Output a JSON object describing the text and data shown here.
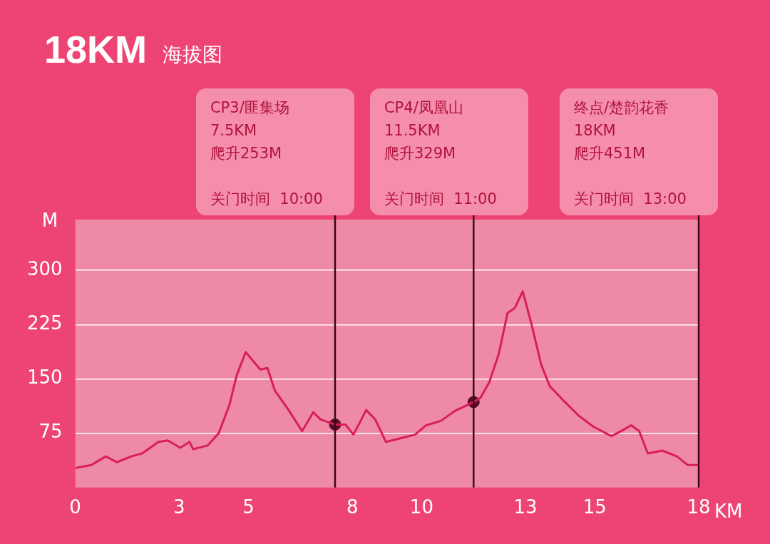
{
  "chart_data": {
    "type": "line",
    "title": "18KM",
    "subtitle": "海拔图",
    "xlabel": "KM",
    "ylabel": "M",
    "xlim": [
      0,
      18
    ],
    "xticks": [
      0,
      3,
      5,
      8,
      10,
      13,
      15,
      18
    ],
    "ylim": [
      0,
      370
    ],
    "yticks": [
      75,
      150,
      225,
      300
    ],
    "grid": "y",
    "legend": false,
    "line_style": "solid",
    "series": [
      {
        "type": "line",
        "marker": "none",
        "color": "#d81e5b",
        "x": [
          0,
          0.46,
          0.88,
          1.2,
          1.62,
          1.93,
          2.4,
          2.67,
          3.03,
          3.3,
          3.4,
          3.82,
          4.14,
          4.45,
          4.66,
          4.92,
          5.13,
          5.34,
          5.55,
          5.76,
          6.13,
          6.55,
          6.87,
          7.08,
          7.5,
          7.8,
          8.03,
          8.4,
          8.66,
          8.97,
          9.39,
          9.81,
          10.13,
          10.55,
          10.97,
          11.5,
          11.7,
          11.95,
          12.23,
          12.48,
          12.69,
          12.92,
          13.17,
          13.45,
          13.7,
          14.12,
          14.54,
          14.96,
          15.48,
          15.76,
          16.05,
          16.28,
          16.53,
          16.95,
          17.37,
          17.69,
          18
        ],
        "values": [
          27,
          31,
          43,
          35,
          43,
          47,
          63,
          65,
          55,
          63,
          53,
          58,
          75,
          114,
          155,
          187,
          175,
          163,
          165,
          134,
          109,
          78,
          104,
          94,
          87,
          87,
          73,
          107,
          94,
          63,
          68,
          73,
          86,
          92,
          106,
          118,
          124,
          145,
          185,
          241,
          248,
          271,
          226,
          170,
          140,
          119,
          99,
          84,
          71,
          78,
          86,
          78,
          47,
          51,
          43,
          31,
          31
        ]
      },
      {
        "type": "scatter",
        "marker": "circle",
        "color": "#5a0a2a",
        "x": [
          7.5,
          11.5
        ],
        "values": [
          87,
          118
        ]
      }
    ],
    "ref_lines": [
      {
        "axis": "x",
        "value": 7.5,
        "label": "CP3/匪集场\n7.5KM\n爬升253M\n\n关门时间  10:00",
        "color": "#3a0a1a"
      },
      {
        "axis": "x",
        "value": 11.5,
        "label": "CP4/凤凰山\n11.5KM\n爬升329M\n\n关门时间  11:00",
        "color": "#3a0a1a"
      },
      {
        "axis": "x",
        "value": 18,
        "label": "终点/楚韵花香\n18KM\n爬升451M\n\n关门时间  13:00",
        "color": "#3a0a1a"
      }
    ]
  }
}
